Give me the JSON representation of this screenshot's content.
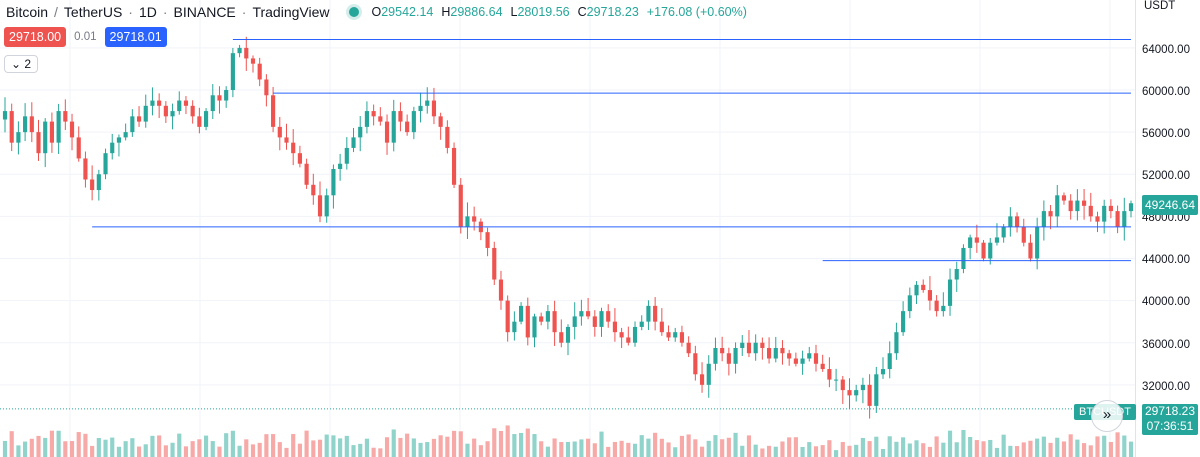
{
  "header": {
    "symbol": "Bitcoin",
    "quote": "TetherUS",
    "interval": "1D",
    "exchange": "BINANCE",
    "platform": "TradingView",
    "slash": "/",
    "dot": "·",
    "ohlc": {
      "o_label": "O",
      "o": "29542.14",
      "h_label": "H",
      "h": "29886.64",
      "l_label": "L",
      "l": "28019.56",
      "c_label": "C",
      "c": "29718.23",
      "change": "+176.08 (+0.60%)"
    }
  },
  "trade": {
    "sell_price": "29718.00",
    "spread": "0.01",
    "buy_price": "29718.01"
  },
  "indicator_toggle": {
    "chevron": "⌄",
    "count": "2"
  },
  "price_scale": {
    "currency": "USDT",
    "labels": [
      "64000.00",
      "60000.00",
      "56000.00",
      "52000.00",
      "48000.00",
      "44000.00",
      "40000.00",
      "36000.00",
      "32000.00"
    ],
    "last_visible_price": "49246.64",
    "current_price": "29718.23",
    "countdown": "07:36:51",
    "symbol_tag": "BTCUSDT"
  },
  "scroll_button": {
    "icon": "»"
  },
  "colors": {
    "up": "#26a69a",
    "down": "#ef5350",
    "line": "#2962ff",
    "vol_up": "#8fd3cb",
    "vol_down": "#f7a9a7"
  },
  "chart_data": {
    "type": "candlestick",
    "y_range": [
      29800,
      65700
    ],
    "y_ticks": [
      32000,
      36000,
      40000,
      44000,
      48000,
      52000,
      56000,
      60000,
      64000
    ],
    "horizontal_lines": [
      {
        "price": 64800,
        "from_bar": 34,
        "to_bar": 185
      },
      {
        "price": 59700,
        "from_bar": 40,
        "to_bar": 185
      },
      {
        "price": 47000,
        "from_bar": 13,
        "to_bar": 187
      },
      {
        "price": 43800,
        "from_bar": 122,
        "to_bar": 187
      }
    ],
    "current_price_line": 29718.23,
    "closes": [
      58000,
      55000,
      56000,
      57500,
      56000,
      54000,
      57000,
      55000,
      58000,
      57000,
      55500,
      53500,
      51500,
      50500,
      52000,
      54000,
      55000,
      55500,
      56000,
      57500,
      57000,
      58500,
      59000,
      58500,
      57500,
      58000,
      59000,
      58500,
      57500,
      56500,
      58000,
      59500,
      59000,
      60000,
      63500,
      64000,
      63000,
      62500,
      61000,
      59500,
      56500,
      55500,
      55000,
      54000,
      53000,
      51000,
      50000,
      48000,
      50000,
      52500,
      53000,
      54500,
      55500,
      56500,
      58000,
      57500,
      57000,
      55000,
      58000,
      57000,
      56000,
      58000,
      58500,
      59000,
      57500,
      56500,
      54500,
      51000,
      47000,
      48000,
      47500,
      46500,
      45000,
      42000,
      40000,
      37000,
      38000,
      39500,
      36500,
      38500,
      38000,
      39000,
      37000,
      36000,
      37500,
      38500,
      39000,
      38500,
      37500,
      39000,
      38000,
      37000,
      36500,
      36000,
      37500,
      38000,
      39500,
      38000,
      37000,
      36500,
      37000,
      36000,
      35000,
      33000,
      32000,
      34000,
      35500,
      35000,
      34000,
      35500,
      36000,
      35000,
      36000,
      35500,
      34500,
      35500,
      35000,
      34500,
      34000,
      34500,
      35000,
      34000,
      33500,
      32500,
      32500,
      31500,
      31000,
      31500,
      32000,
      30000,
      33000,
      33500,
      35000,
      37000,
      39000,
      40500,
      41500,
      41000,
      40000,
      39000,
      39500,
      42000,
      43000,
      45000,
      46000,
      45500,
      44000,
      45500,
      46000,
      47000,
      48000,
      47000,
      45500,
      44000,
      47000,
      48500,
      48000,
      50000,
      49500,
      48500,
      49500,
      49000,
      48000,
      47500,
      49000,
      48500,
      47000,
      48500,
      49246
    ]
  }
}
